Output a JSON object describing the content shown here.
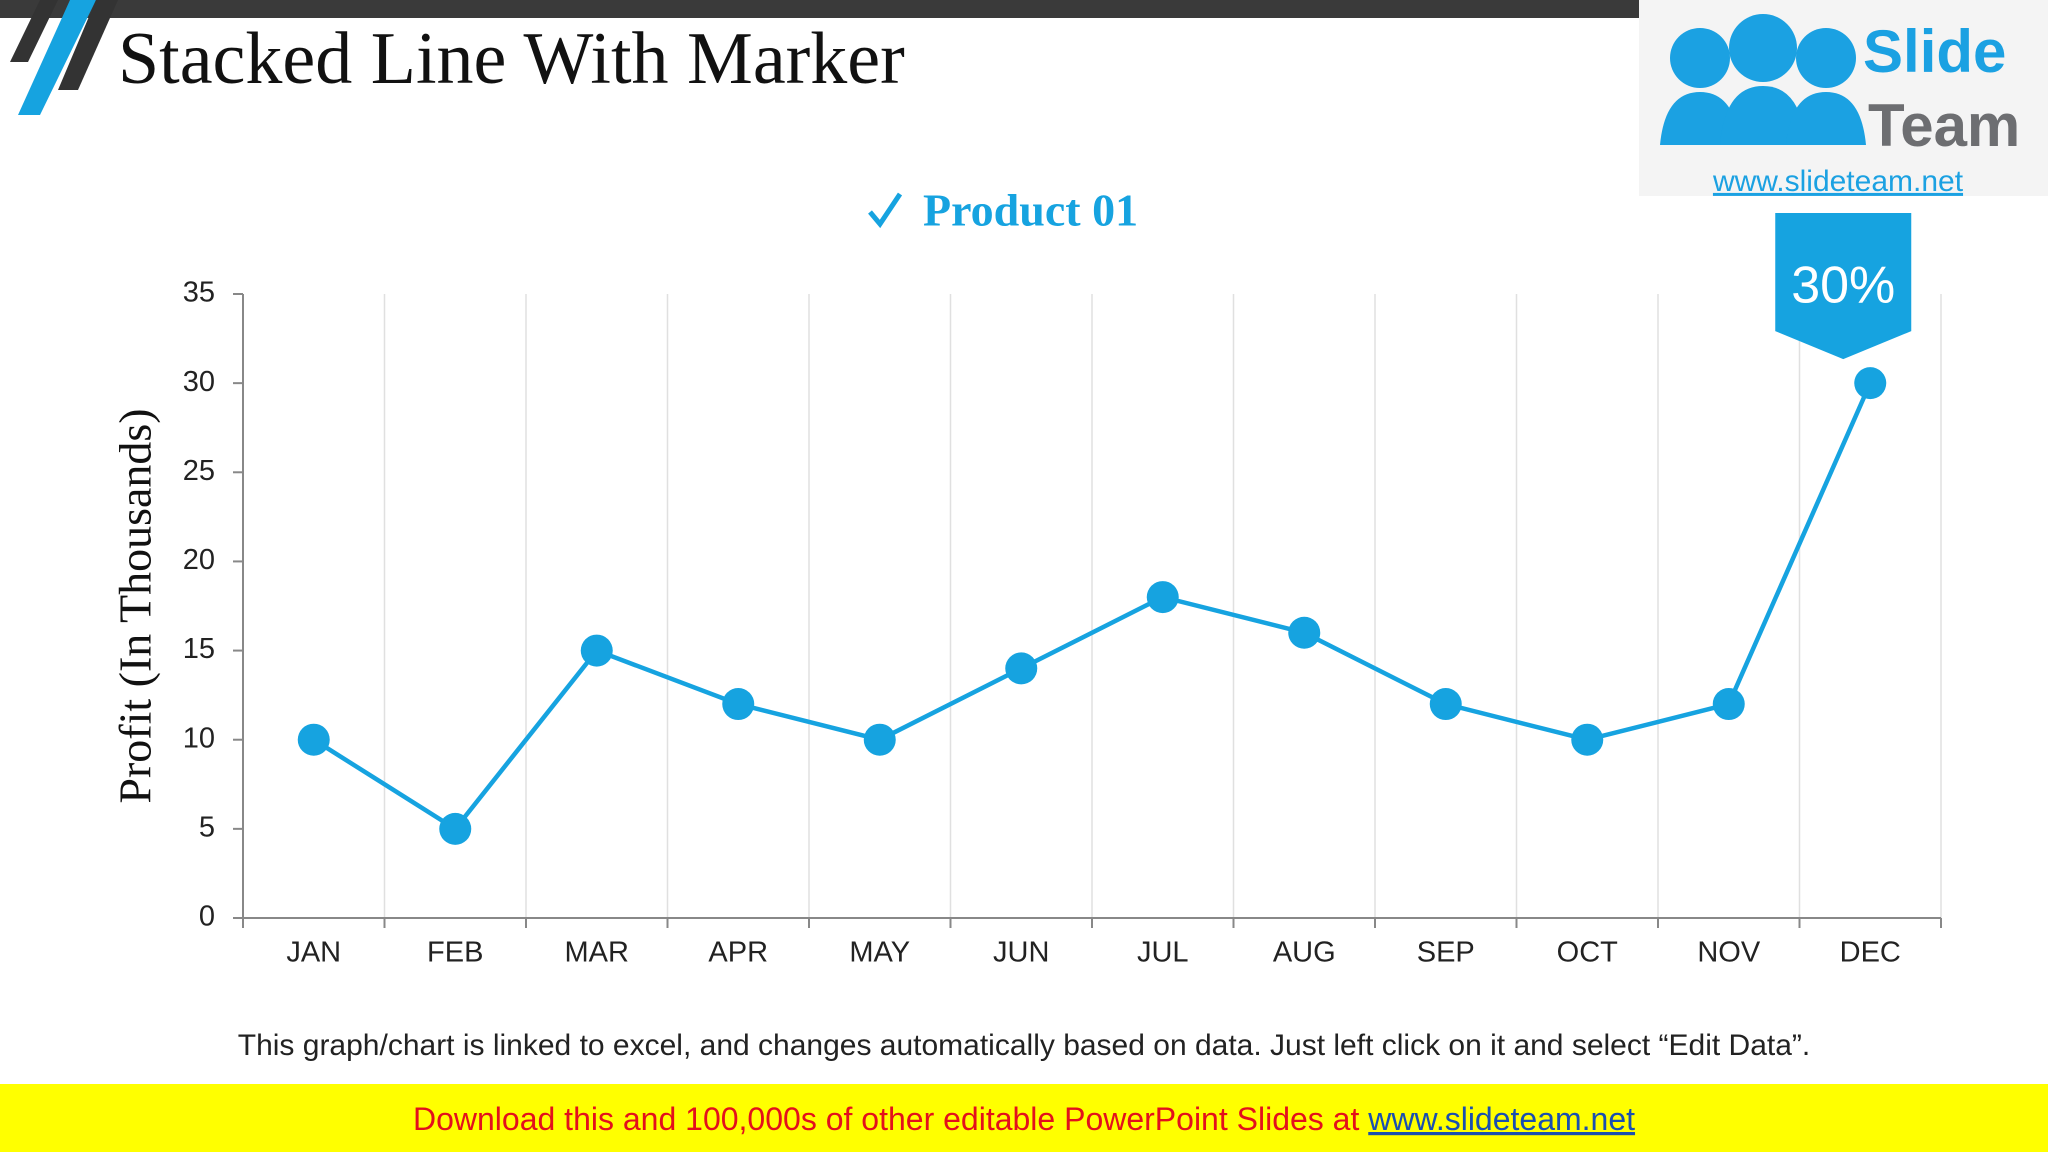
{
  "header": {
    "title": "Stacked Line With Marker"
  },
  "logo": {
    "line1": "Slide",
    "line2": "Team",
    "url": "www.slideteam.net"
  },
  "chart_data": {
    "type": "line",
    "y_label": "Profit (In Thousands)",
    "categories": [
      "JAN",
      "FEB",
      "MAR",
      "APR",
      "MAY",
      "JUN",
      "JUL",
      "AUG",
      "SEP",
      "OCT",
      "NOV",
      "DEC"
    ],
    "series": [
      {
        "name": "Product 01",
        "color": "#16a3e0",
        "values": [
          10,
          5,
          15,
          12,
          10,
          14,
          18,
          16,
          12,
          10,
          12,
          30
        ]
      }
    ],
    "ylim": [
      0,
      35
    ],
    "yticks": [
      0,
      5,
      10,
      15,
      20,
      25,
      30,
      35
    ],
    "grid": true,
    "annotation": "30%"
  },
  "footnote": "This graph/chart is linked to excel, and changes automatically based on data. Just left click on it and select “Edit Data”.",
  "banner": {
    "text": "Download this and 100,000s of other editable PowerPoint Slides at ",
    "link": "www.slideteam.net"
  }
}
